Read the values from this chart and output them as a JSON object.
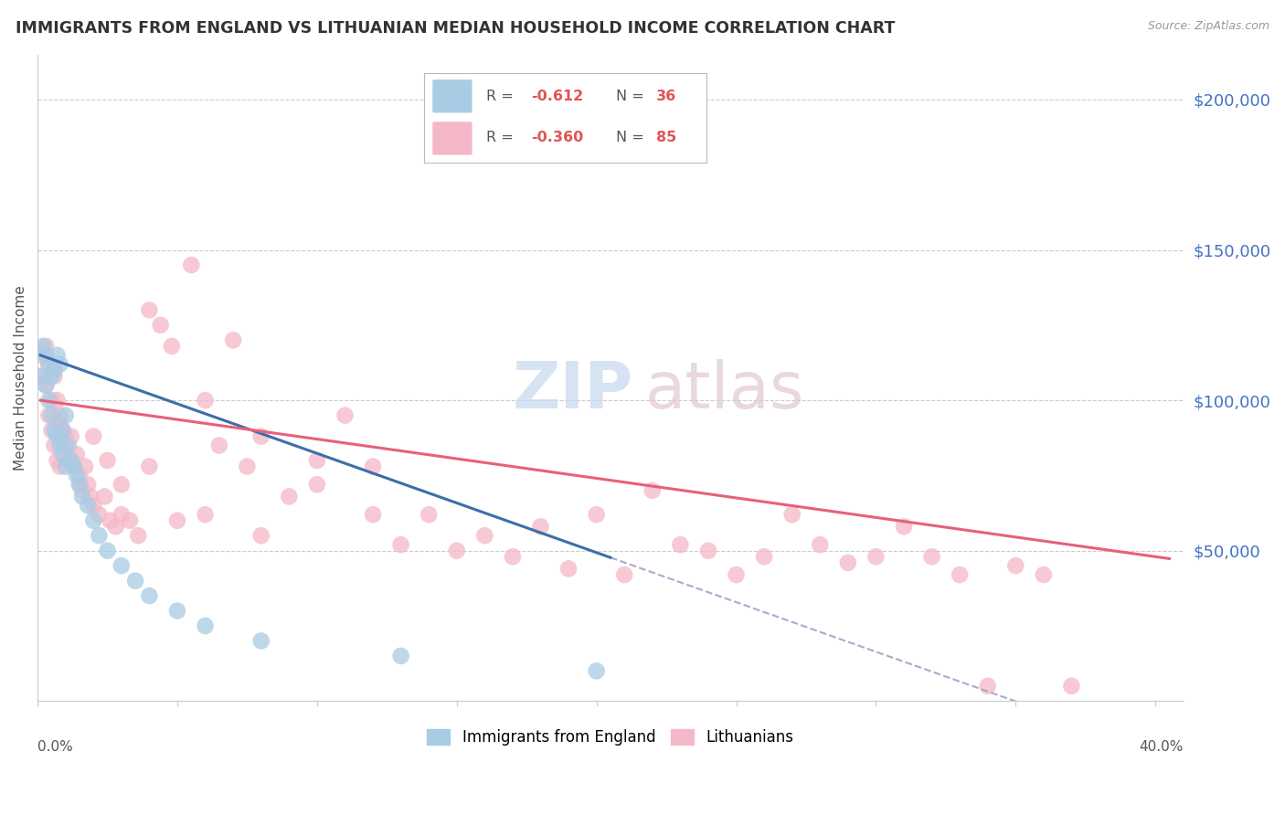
{
  "title": "IMMIGRANTS FROM ENGLAND VS LITHUANIAN MEDIAN HOUSEHOLD INCOME CORRELATION CHART",
  "source": "Source: ZipAtlas.com",
  "ylabel": "Median Household Income",
  "ytick_labels": [
    "$50,000",
    "$100,000",
    "$150,000",
    "$200,000"
  ],
  "ytick_values": [
    50000,
    100000,
    150000,
    200000
  ],
  "ylim": [
    0,
    215000
  ],
  "xlim": [
    0.0,
    0.41
  ],
  "blue_color": "#a8cce4",
  "pink_color": "#f5b8c8",
  "blue_line_color": "#3c6eaa",
  "pink_line_color": "#e8607a",
  "dashed_color": "#aaaacc",
  "background_color": "#ffffff",
  "grid_color": "#cccccc",
  "title_fontsize": 12.5,
  "right_label_color": "#4472c4",
  "watermark_zip_color": "#c8d8ee",
  "watermark_atlas_color": "#d8c8cc",
  "england_x": [
    0.001,
    0.002,
    0.003,
    0.003,
    0.004,
    0.004,
    0.005,
    0.005,
    0.006,
    0.006,
    0.007,
    0.007,
    0.008,
    0.008,
    0.009,
    0.009,
    0.01,
    0.01,
    0.011,
    0.012,
    0.013,
    0.014,
    0.015,
    0.016,
    0.018,
    0.02,
    0.022,
    0.025,
    0.03,
    0.035,
    0.04,
    0.05,
    0.06,
    0.08,
    0.13,
    0.2
  ],
  "england_y": [
    108000,
    118000,
    115000,
    105000,
    112000,
    100000,
    108000,
    95000,
    110000,
    90000,
    115000,
    88000,
    112000,
    85000,
    90000,
    82000,
    95000,
    78000,
    85000,
    80000,
    78000,
    75000,
    72000,
    68000,
    65000,
    60000,
    55000,
    50000,
    45000,
    40000,
    35000,
    30000,
    25000,
    20000,
    15000,
    10000
  ],
  "lithuanian_x": [
    0.001,
    0.002,
    0.003,
    0.003,
    0.004,
    0.004,
    0.005,
    0.005,
    0.006,
    0.006,
    0.007,
    0.007,
    0.008,
    0.008,
    0.009,
    0.01,
    0.011,
    0.012,
    0.013,
    0.014,
    0.015,
    0.016,
    0.017,
    0.018,
    0.019,
    0.02,
    0.022,
    0.024,
    0.026,
    0.028,
    0.03,
    0.033,
    0.036,
    0.04,
    0.044,
    0.048,
    0.055,
    0.06,
    0.065,
    0.07,
    0.075,
    0.08,
    0.09,
    0.1,
    0.11,
    0.12,
    0.13,
    0.14,
    0.15,
    0.16,
    0.17,
    0.18,
    0.19,
    0.2,
    0.21,
    0.22,
    0.23,
    0.24,
    0.25,
    0.26,
    0.27,
    0.28,
    0.29,
    0.3,
    0.31,
    0.32,
    0.33,
    0.34,
    0.35,
    0.36,
    0.37,
    0.006,
    0.008,
    0.01,
    0.012,
    0.015,
    0.02,
    0.025,
    0.03,
    0.04,
    0.05,
    0.06,
    0.08,
    0.1,
    0.12
  ],
  "lithuanian_y": [
    115000,
    108000,
    118000,
    105000,
    112000,
    95000,
    100000,
    90000,
    108000,
    85000,
    100000,
    80000,
    95000,
    78000,
    90000,
    85000,
    80000,
    88000,
    78000,
    82000,
    75000,
    70000,
    78000,
    72000,
    68000,
    65000,
    62000,
    68000,
    60000,
    58000,
    62000,
    60000,
    55000,
    130000,
    125000,
    118000,
    145000,
    100000,
    85000,
    120000,
    78000,
    88000,
    68000,
    80000,
    95000,
    62000,
    52000,
    62000,
    50000,
    55000,
    48000,
    58000,
    44000,
    62000,
    42000,
    70000,
    52000,
    50000,
    42000,
    48000,
    62000,
    52000,
    46000,
    48000,
    58000,
    48000,
    42000,
    5000,
    45000,
    42000,
    5000,
    110000,
    92000,
    88000,
    80000,
    72000,
    88000,
    80000,
    72000,
    78000,
    60000,
    62000,
    55000,
    72000,
    78000
  ]
}
